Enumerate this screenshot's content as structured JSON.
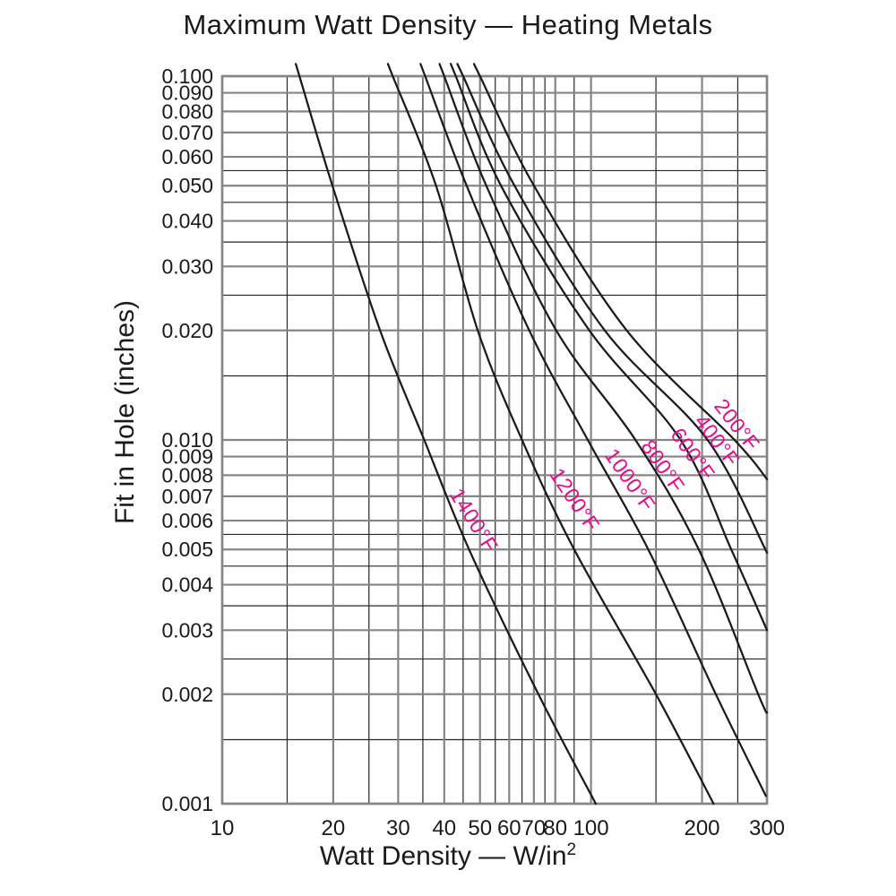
{
  "title": "Maximum Watt Density — Heating Metals",
  "chart_data": {
    "type": "line",
    "title": "Maximum Watt Density — Heating Metals",
    "xlabel": "Watt Density — W/in",
    "xlabel_sup": "2",
    "ylabel": "Fit in Hole (inches)",
    "x_scale": "log",
    "y_scale": "log",
    "xlim": [
      10,
      300
    ],
    "ylim": [
      0.001,
      0.1
    ],
    "grid": true,
    "legend_position": "labels-on-curves",
    "x_ticks_labeled": [
      {
        "label": "10",
        "value": 10
      },
      {
        "label": "20",
        "value": 20
      },
      {
        "label": "30",
        "value": 30
      },
      {
        "label": "40",
        "value": 40
      },
      {
        "label": "50",
        "value": 50
      },
      {
        "label": "60",
        "value": 60
      },
      {
        "label": "70",
        "value": 70
      },
      {
        "label": "80",
        "value": 80
      },
      {
        "label": "100",
        "value": 100
      },
      {
        "label": "200",
        "value": 200
      },
      {
        "label": "300",
        "value": 300
      }
    ],
    "x_gridlines_minor": [
      15,
      25,
      35,
      45,
      55,
      65,
      75,
      90,
      150,
      250
    ],
    "y_ticks_labeled": [
      {
        "label": "0.100",
        "value": 0.1
      },
      {
        "label": "0.090",
        "value": 0.09
      },
      {
        "label": "0.080",
        "value": 0.08
      },
      {
        "label": "0.070",
        "value": 0.07
      },
      {
        "label": "0.060",
        "value": 0.06
      },
      {
        "label": "0.050",
        "value": 0.05
      },
      {
        "label": "0.040",
        "value": 0.04
      },
      {
        "label": "0.030",
        "value": 0.03
      },
      {
        "label": "0.020",
        "value": 0.02
      },
      {
        "label": "0.010",
        "value": 0.01
      },
      {
        "label": "0.009",
        "value": 0.009
      },
      {
        "label": "0.008",
        "value": 0.008
      },
      {
        "label": "0.007",
        "value": 0.007
      },
      {
        "label": "0.006",
        "value": 0.006
      },
      {
        "label": "0.005",
        "value": 0.005
      },
      {
        "label": "0.004",
        "value": 0.004
      },
      {
        "label": "0.003",
        "value": 0.003
      },
      {
        "label": "0.002",
        "value": 0.002
      },
      {
        "label": "0.001",
        "value": 0.001
      }
    ],
    "y_gridlines_minor": [
      0.055,
      0.045,
      0.035,
      0.025,
      0.015,
      0.0055,
      0.0045,
      0.0035,
      0.0025,
      0.0015
    ],
    "series": [
      {
        "name": "200°F",
        "points": [
          [
            50,
            0.1
          ],
          [
            70,
            0.05
          ],
          [
            125,
            0.02
          ],
          [
            245,
            0.01
          ],
          [
            300,
            0.0078
          ]
        ],
        "label": {
          "x": 240,
          "y": 0.0107,
          "angle": 52
        }
      },
      {
        "name": "400°F",
        "points": [
          [
            45,
            0.1
          ],
          [
            62,
            0.05
          ],
          [
            109,
            0.02
          ],
          [
            207,
            0.01
          ],
          [
            300,
            0.0049
          ]
        ],
        "label": {
          "x": 212,
          "y": 0.0097,
          "angle": 53
        }
      },
      {
        "name": "600°F",
        "points": [
          [
            43,
            0.1
          ],
          [
            57,
            0.05
          ],
          [
            99,
            0.02
          ],
          [
            175,
            0.01
          ],
          [
            240,
            0.005
          ],
          [
            300,
            0.003
          ]
        ],
        "label": {
          "x": 182,
          "y": 0.0089,
          "angle": 54
        }
      },
      {
        "name": "800°F",
        "points": [
          [
            40,
            0.1
          ],
          [
            52,
            0.05
          ],
          [
            80.5,
            0.02
          ],
          [
            132,
            0.01
          ],
          [
            196,
            0.005
          ],
          [
            284,
            0.002
          ],
          [
            300,
            0.00178
          ]
        ],
        "label": {
          "x": 151,
          "y": 0.00825,
          "angle": 55
        }
      },
      {
        "name": "1000°F",
        "points": [
          [
            35.5,
            0.1
          ],
          [
            46,
            0.05
          ],
          [
            68,
            0.02
          ],
          [
            98,
            0.01
          ],
          [
            143,
            0.005
          ],
          [
            218,
            0.002
          ],
          [
            298,
            0.00105
          ]
        ],
        "label": {
          "x": 123,
          "y": 0.00757,
          "angle": 55
        }
      },
      {
        "name": "1200°F",
        "points": [
          [
            29,
            0.1
          ],
          [
            38,
            0.05
          ],
          [
            49.3,
            0.02
          ],
          [
            65,
            0.01
          ],
          [
            90,
            0.005
          ],
          [
            150,
            0.002
          ],
          [
            215,
            0.001
          ]
        ],
        "label": {
          "x": 87,
          "y": 0.00668,
          "angle": 56
        }
      },
      {
        "name": "1400°F",
        "points": [
          [
            16.2,
            0.1
          ],
          [
            19.9,
            0.05
          ],
          [
            26.8,
            0.02
          ],
          [
            35.3,
            0.01
          ],
          [
            46.7,
            0.005
          ],
          [
            72,
            0.002
          ],
          [
            103,
            0.001
          ]
        ],
        "label": {
          "x": 46.3,
          "y": 0.00587,
          "angle": 58
        }
      }
    ],
    "colors": {
      "curve": "#1b1b1b",
      "series_label": "#e60c8e",
      "grid_major": "#858585",
      "grid_minor": "#262626",
      "border": "#858585",
      "text": "#1a1a1a"
    }
  }
}
